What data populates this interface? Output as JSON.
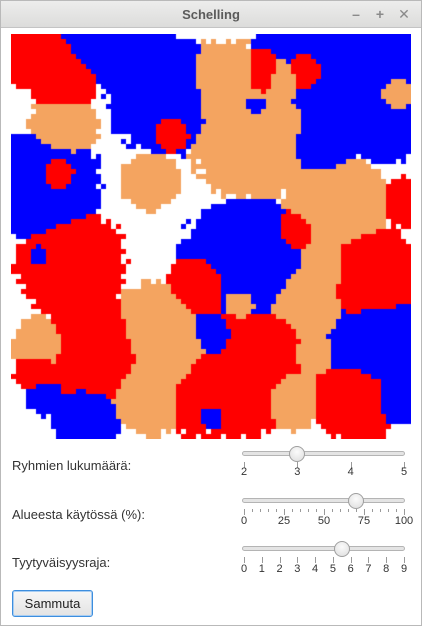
{
  "window": {
    "title": "Schelling",
    "minimize_glyph": "–",
    "maximize_glyph": "+",
    "close_glyph": "✕"
  },
  "colors": {
    "red": "#ff0000",
    "blue": "#0000ff",
    "orange": "#f4a460",
    "empty": "#ffffff"
  },
  "controls": {
    "groups": {
      "label": "Ryhmien lukumäärä:",
      "min": 2,
      "max": 5,
      "value": 3,
      "major_ticks": [
        "2",
        "3",
        "4",
        "5"
      ],
      "minor_per_major": 0
    },
    "area": {
      "label": "Alueesta käytössä (%):",
      "min": 0,
      "max": 100,
      "value": 70,
      "major_ticks": [
        "0",
        "25",
        "50",
        "75",
        "100"
      ],
      "minor_per_major": 4
    },
    "threshold": {
      "label": "Tyytyväisyysraja:",
      "min": 0,
      "max": 9,
      "value": 5.5,
      "major_ticks": [
        "0",
        "1",
        "2",
        "3",
        "4",
        "5",
        "6",
        "7",
        "8",
        "9"
      ],
      "minor_per_major": 0
    },
    "button_label": "Sammuta"
  }
}
